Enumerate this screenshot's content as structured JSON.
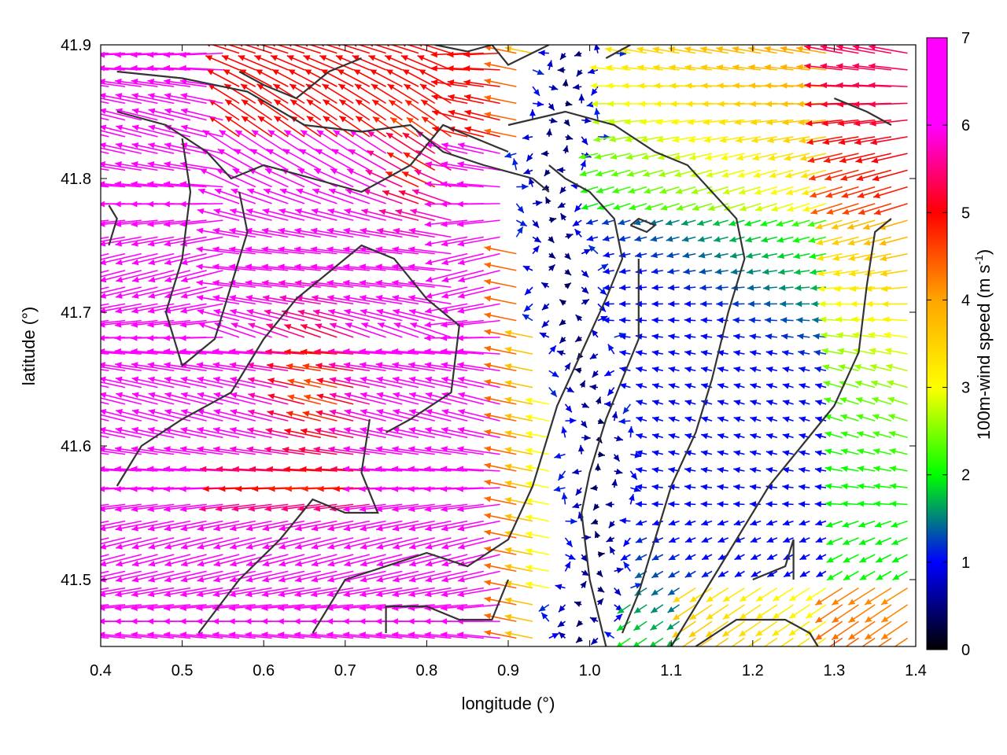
{
  "chart_data": {
    "type": "vector-field",
    "xlabel": "longitude (°)",
    "ylabel": "latitude (°)",
    "xlim": [
      0.4,
      1.4
    ],
    "ylim": [
      41.45,
      41.9
    ],
    "xticks": [
      "0.4",
      "0.5",
      "0.6",
      "0.7",
      "0.8",
      "0.9",
      "1.0",
      "1.1",
      "1.2",
      "1.3",
      "1.4"
    ],
    "yticks": [
      "41.5",
      "41.6",
      "41.7",
      "41.8",
      "41.9"
    ],
    "colorbar": {
      "label_main": "100m-wind speed (m s",
      "label_sup": "-1",
      "label_close": ")",
      "range": [
        0,
        7
      ],
      "ticks": [
        "0",
        "1",
        "2",
        "3",
        "4",
        "5",
        "6",
        "7"
      ],
      "palette": [
        "#000000",
        "#0000ff",
        "#00ff00",
        "#ffff00",
        "#ffa500",
        "#ff0000",
        "#ff00ff"
      ]
    },
    "grid": false,
    "legend": "none",
    "arrow_grid": {
      "nx": 50,
      "ny": 36
    },
    "wind_regions": [
      {
        "description": "strong easterly flow over western basin",
        "lon_range": [
          0.4,
          0.9
        ],
        "lat_range": [
          41.45,
          41.9
        ],
        "speed": 7
      },
      {
        "description": "calm / light-wind zone along river valley",
        "lon_range": [
          0.95,
          1.05
        ],
        "lat_range": [
          41.45,
          41.85
        ],
        "speed": 0.8
      },
      {
        "description": "moderate flow over eastern plateau",
        "lon_range": [
          1.05,
          1.4
        ],
        "lat_range": [
          41.45,
          41.9
        ],
        "speed": 3.5
      }
    ],
    "coastline_paths": [
      [
        [
          0.42,
          41.88
        ],
        [
          0.5,
          41.875
        ],
        [
          0.58,
          41.865
        ],
        [
          0.65,
          41.84
        ],
        [
          0.72,
          41.835
        ],
        [
          0.78,
          41.84
        ],
        [
          0.82,
          41.82
        ],
        [
          0.87,
          41.81
        ],
        [
          0.93,
          41.8
        ],
        [
          0.95,
          41.79
        ]
      ],
      [
        [
          0.42,
          41.85
        ],
        [
          0.48,
          41.84
        ],
        [
          0.53,
          41.82
        ],
        [
          0.56,
          41.8
        ],
        [
          0.6,
          41.81
        ],
        [
          0.66,
          41.8
        ],
        [
          0.72,
          41.79
        ],
        [
          0.78,
          41.81
        ],
        [
          0.82,
          41.84
        ],
        [
          0.86,
          41.83
        ],
        [
          0.9,
          41.82
        ]
      ],
      [
        [
          0.5,
          41.83
        ],
        [
          0.51,
          41.79
        ],
        [
          0.5,
          41.74
        ],
        [
          0.48,
          41.7
        ],
        [
          0.5,
          41.66
        ],
        [
          0.54,
          41.68
        ],
        [
          0.56,
          41.72
        ],
        [
          0.58,
          41.76
        ],
        [
          0.57,
          41.79
        ]
      ],
      [
        [
          0.42,
          41.57
        ],
        [
          0.45,
          41.6
        ],
        [
          0.5,
          41.62
        ],
        [
          0.56,
          41.64
        ],
        [
          0.6,
          41.68
        ],
        [
          0.64,
          41.71
        ],
        [
          0.68,
          41.73
        ],
        [
          0.72,
          41.75
        ],
        [
          0.76,
          41.74
        ],
        [
          0.8,
          41.71
        ],
        [
          0.84,
          41.69
        ],
        [
          0.83,
          41.64
        ],
        [
          0.78,
          41.62
        ],
        [
          0.75,
          41.61
        ]
      ],
      [
        [
          0.52,
          41.46
        ],
        [
          0.57,
          41.5
        ],
        [
          0.62,
          41.53
        ],
        [
          0.66,
          41.56
        ],
        [
          0.7,
          41.55
        ],
        [
          0.74,
          41.55
        ],
        [
          0.72,
          41.58
        ],
        [
          0.73,
          41.62
        ]
      ],
      [
        [
          0.66,
          41.46
        ],
        [
          0.7,
          41.5
        ],
        [
          0.75,
          41.51
        ],
        [
          0.8,
          41.52
        ],
        [
          0.85,
          41.51
        ],
        [
          0.9,
          41.53
        ],
        [
          0.93,
          41.57
        ],
        [
          0.96,
          41.63
        ],
        [
          0.99,
          41.67
        ],
        [
          1.02,
          41.71
        ],
        [
          1.04,
          41.74
        ],
        [
          1.03,
          41.77
        ],
        [
          1.0,
          41.79
        ],
        [
          0.97,
          41.8
        ],
        [
          0.95,
          41.81
        ]
      ],
      [
        [
          0.75,
          41.46
        ],
        [
          0.75,
          41.48
        ],
        [
          0.8,
          41.48
        ],
        [
          0.84,
          41.47
        ],
        [
          0.88,
          41.47
        ],
        [
          0.9,
          41.5
        ]
      ],
      [
        [
          1.02,
          41.45
        ],
        [
          1.0,
          41.5
        ],
        [
          0.99,
          41.55
        ],
        [
          1.0,
          41.58
        ],
        [
          1.02,
          41.62
        ],
        [
          1.04,
          41.65
        ],
        [
          1.06,
          41.68
        ],
        [
          1.06,
          41.72
        ],
        [
          1.06,
          41.74
        ]
      ],
      [
        [
          0.9,
          41.84
        ],
        [
          0.97,
          41.85
        ],
        [
          1.03,
          41.84
        ],
        [
          1.08,
          41.82
        ],
        [
          1.12,
          41.81
        ],
        [
          1.15,
          41.79
        ],
        [
          1.18,
          41.77
        ],
        [
          1.19,
          41.74
        ],
        [
          1.17,
          41.7
        ],
        [
          1.15,
          41.65
        ],
        [
          1.13,
          41.61
        ],
        [
          1.1,
          41.57
        ],
        [
          1.08,
          41.53
        ],
        [
          1.06,
          41.49
        ],
        [
          1.04,
          41.46
        ]
      ],
      [
        [
          1.1,
          41.45
        ],
        [
          1.14,
          41.49
        ],
        [
          1.18,
          41.53
        ],
        [
          1.22,
          41.57
        ],
        [
          1.26,
          41.6
        ],
        [
          1.3,
          41.63
        ],
        [
          1.33,
          41.67
        ],
        [
          1.34,
          41.72
        ],
        [
          1.35,
          41.76
        ],
        [
          1.37,
          41.77
        ]
      ],
      [
        [
          1.2,
          41.5
        ],
        [
          1.24,
          41.51
        ],
        [
          1.25,
          41.53
        ],
        [
          1.25,
          41.5
        ]
      ],
      [
        [
          1.13,
          41.45
        ],
        [
          1.18,
          41.47
        ],
        [
          1.24,
          41.47
        ],
        [
          1.27,
          41.46
        ],
        [
          1.28,
          41.45
        ]
      ],
      [
        [
          0.57,
          41.88
        ],
        [
          0.6,
          41.87
        ],
        [
          0.64,
          41.86
        ],
        [
          0.68,
          41.88
        ],
        [
          0.72,
          41.89
        ]
      ],
      [
        [
          0.81,
          41.9
        ],
        [
          0.85,
          41.895
        ],
        [
          0.88,
          41.9
        ],
        [
          0.9,
          41.885
        ],
        [
          0.95,
          41.9
        ]
      ],
      [
        [
          0.41,
          41.78
        ],
        [
          0.42,
          41.77
        ],
        [
          0.41,
          41.75
        ]
      ],
      [
        [
          1.05,
          41.765
        ],
        [
          1.07,
          41.76
        ],
        [
          1.08,
          41.765
        ],
        [
          1.06,
          41.77
        ],
        [
          1.05,
          41.765
        ]
      ],
      [
        [
          1.3,
          41.86
        ],
        [
          1.34,
          41.85
        ],
        [
          1.37,
          41.84
        ]
      ],
      [
        [
          1.02,
          41.89
        ],
        [
          1.05,
          41.9
        ]
      ]
    ]
  }
}
